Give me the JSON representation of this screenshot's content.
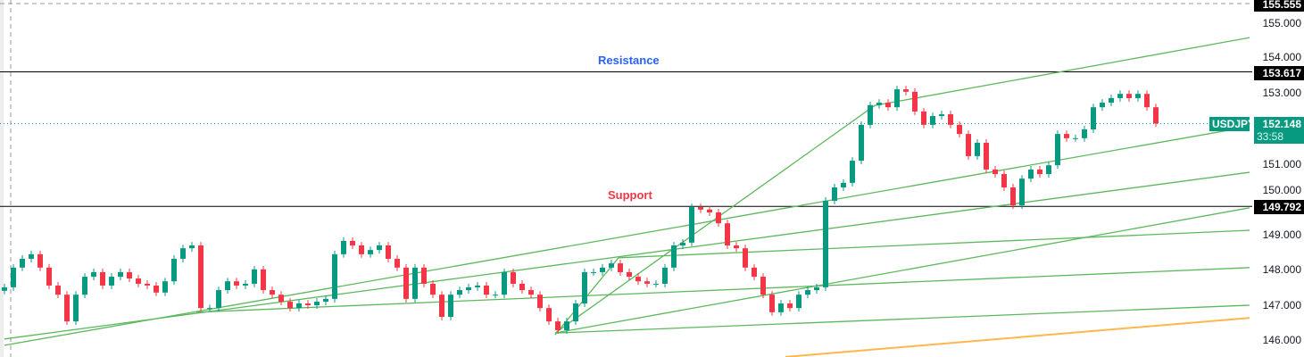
{
  "symbol": "USDJPY",
  "last_price": "152.148",
  "countdown": "33:58",
  "colors": {
    "up": "#089981",
    "down": "#f23645",
    "trendline": "#5cb85c",
    "orange_line": "#ffb74d",
    "resistance_label": "#2962ff",
    "support_label": "#f23645",
    "level_line": "#000000"
  },
  "price_axis": {
    "labels": [
      "155.000",
      "154.000",
      "153.000",
      "151.000",
      "150.000",
      "149.000",
      "148.000",
      "147.000",
      "146.000"
    ]
  },
  "markers": {
    "top_dashed": "155.555",
    "resistance": "153.617",
    "support": "149.792"
  },
  "annotations": {
    "resistance_text": "Resistance",
    "support_text": "Support"
  },
  "chart_data": {
    "type": "candlestick",
    "ylim": [
      145.18,
      155.66
    ],
    "grid": false,
    "closes": [
      147.49,
      148.05,
      148.3,
      148.43,
      148.05,
      147.54,
      147.28,
      146.52,
      147.28,
      147.79,
      147.92,
      147.54,
      147.79,
      147.92,
      147.74,
      147.59,
      147.54,
      147.34,
      147.66,
      148.3,
      148.6,
      148.68,
      146.9,
      146.9,
      147.41,
      147.66,
      147.54,
      147.59,
      148.0,
      147.41,
      147.28,
      147.08,
      146.9,
      147.03,
      146.98,
      147.08,
      147.16,
      148.43,
      148.81,
      148.68,
      148.43,
      148.55,
      148.68,
      148.3,
      148.05,
      147.16,
      148.05,
      147.59,
      147.28,
      146.65,
      147.28,
      147.41,
      147.49,
      147.54,
      147.28,
      147.28,
      147.92,
      147.59,
      147.41,
      147.28,
      146.9,
      146.52,
      146.27,
      146.52,
      147.03,
      147.92,
      147.92,
      148.05,
      148.17,
      147.92,
      147.79,
      147.66,
      147.59,
      147.59,
      148.05,
      148.68,
      148.76,
      149.77,
      149.7,
      149.62,
      149.31,
      148.68,
      148.6,
      148.05,
      147.79,
      147.28,
      146.78,
      147.03,
      146.9,
      147.28,
      147.41,
      147.49,
      149.95,
      150.33,
      150.46,
      151.09,
      152.11,
      152.67,
      152.74,
      152.61,
      153.12,
      153.05,
      152.49,
      152.11,
      152.36,
      152.41,
      152.11,
      151.85,
      151.22,
      151.6,
      150.84,
      150.71,
      150.33,
      149.82,
      150.58,
      150.84,
      150.71,
      150.96,
      151.85,
      151.73,
      151.73,
      151.98,
      152.61,
      152.74,
      152.87,
      152.99,
      152.87,
      152.99,
      152.61,
      152.148
    ],
    "horizontal_levels": [
      153.617,
      149.792
    ],
    "trendlines": [
      {
        "from": [
          0,
          145.84
        ],
        "to": [
          139.5,
          152.06
        ]
      },
      {
        "from": [
          0,
          146.02
        ],
        "to": [
          139.5,
          150.76
        ]
      },
      {
        "from": [
          21.5,
          146.78
        ],
        "to": [
          139.5,
          148.05
        ]
      },
      {
        "from": [
          68.8,
          148.33
        ],
        "to": [
          139.5,
          149.11
        ]
      },
      {
        "from": [
          61.7,
          146.14
        ],
        "to": [
          68.8,
          148.33
        ]
      },
      {
        "from": [
          61.7,
          146.19
        ],
        "to": [
          97.5,
          152.66
        ]
      },
      {
        "from": [
          61.7,
          146.19
        ],
        "to": [
          139.5,
          149.75
        ]
      },
      {
        "from": [
          61.7,
          146.19
        ],
        "to": [
          139.5,
          146.98
        ]
      },
      {
        "from": [
          97.5,
          152.66
        ],
        "to": [
          139.5,
          154.59
        ]
      }
    ],
    "orange_line": {
      "from": [
        87.5,
        145.51
      ],
      "to": [
        139.5,
        146.62
      ]
    }
  }
}
